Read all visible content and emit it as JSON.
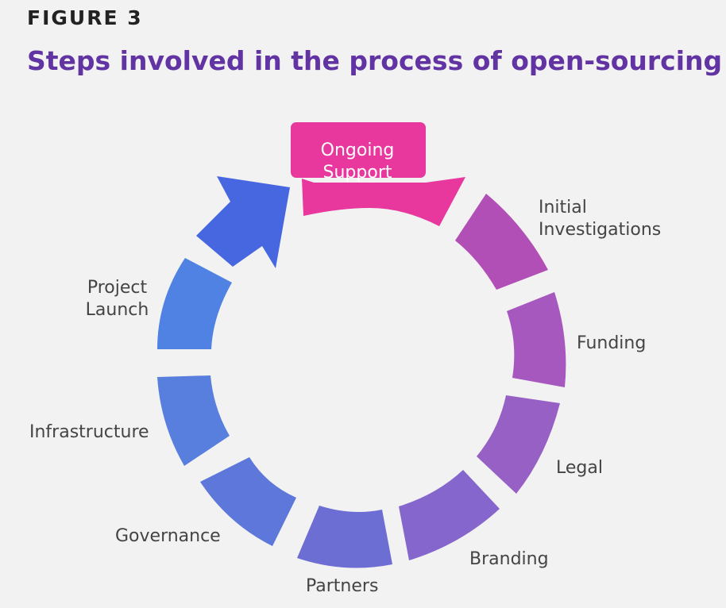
{
  "figure_label": "FIGURE 3",
  "title": "Steps involved in the process of open-sourcing",
  "steps": [
    {
      "lines": [
        "Ongoing",
        "Support"
      ],
      "color": "#e8389e"
    },
    {
      "lines": [
        "Initial",
        "Investigations"
      ],
      "color": "#b24fb6"
    },
    {
      "lines": [
        "Funding"
      ],
      "color": "#a758be"
    },
    {
      "lines": [
        "Legal"
      ],
      "color": "#9760c4"
    },
    {
      "lines": [
        "Branding"
      ],
      "color": "#8466cc"
    },
    {
      "lines": [
        "Partners"
      ],
      "color": "#6d6ed4"
    },
    {
      "lines": [
        "Governance"
      ],
      "color": "#5d78da"
    },
    {
      "lines": [
        "Infrastructure"
      ],
      "color": "#587fde"
    },
    {
      "lines": [
        "Project",
        "Launch"
      ],
      "color": "#4f82e2"
    },
    {
      "color": "#4767e0"
    }
  ]
}
